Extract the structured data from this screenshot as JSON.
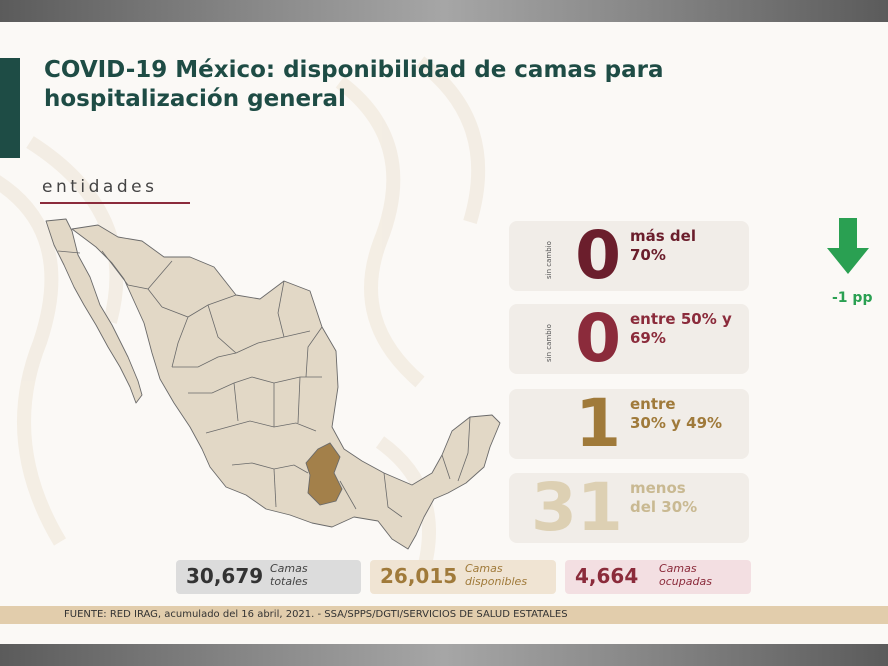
{
  "title_line1": "COVID-19 México: disponibilidad de camas para",
  "title_line2": "hospitalización general",
  "section": "entidades",
  "cards": [
    {
      "side": "sin cambio",
      "value": "0",
      "desc1": "más del",
      "desc2": "70%",
      "value_color": "#6b1e2c",
      "desc_color": "#6b1e2c"
    },
    {
      "side": "sin cambio",
      "value": "0",
      "desc1": "entre 50% y",
      "desc2": "69%",
      "value_color": "#8b2b3b",
      "desc_color": "#8b2b3b"
    },
    {
      "side": "",
      "value": "1",
      "desc1": "entre",
      "desc2": "30% y 49%",
      "value_color": "#a07a3a",
      "desc_color": "#a07a3a"
    },
    {
      "side": "",
      "value": "31",
      "desc1": "menos",
      "desc2": "del 30%",
      "value_color": "#ddd0b3",
      "desc_color": "#c9b992"
    }
  ],
  "trend": {
    "label": "-1 pp",
    "icon": "arrow-down-icon",
    "color": "#2aa052"
  },
  "stats": [
    {
      "number": "30,679",
      "label1": "Camas",
      "label2": "totales",
      "bg": "#dcdcdc",
      "color": "#333333"
    },
    {
      "number": "26,015",
      "label1": "Camas",
      "label2": "disponibles",
      "bg": "#f0e4d3",
      "color": "#a07a3a"
    },
    {
      "number": "4,664",
      "label1": "Camas",
      "label2": "ocupadas",
      "bg": "#f3dfe2",
      "color": "#8b2b3b"
    }
  ],
  "footer": "FUENTE: RED IRAG, acumulado del 16 abril, 2021. -   SSA/SPPS/DGTI/SERVICIOS DE SALUD ESTATALES",
  "colors": {
    "title": "#1e4c45",
    "map_fill": "#e2d8c6",
    "map_highlight": "#a3804a",
    "map_stroke": "#6a6a6a"
  }
}
